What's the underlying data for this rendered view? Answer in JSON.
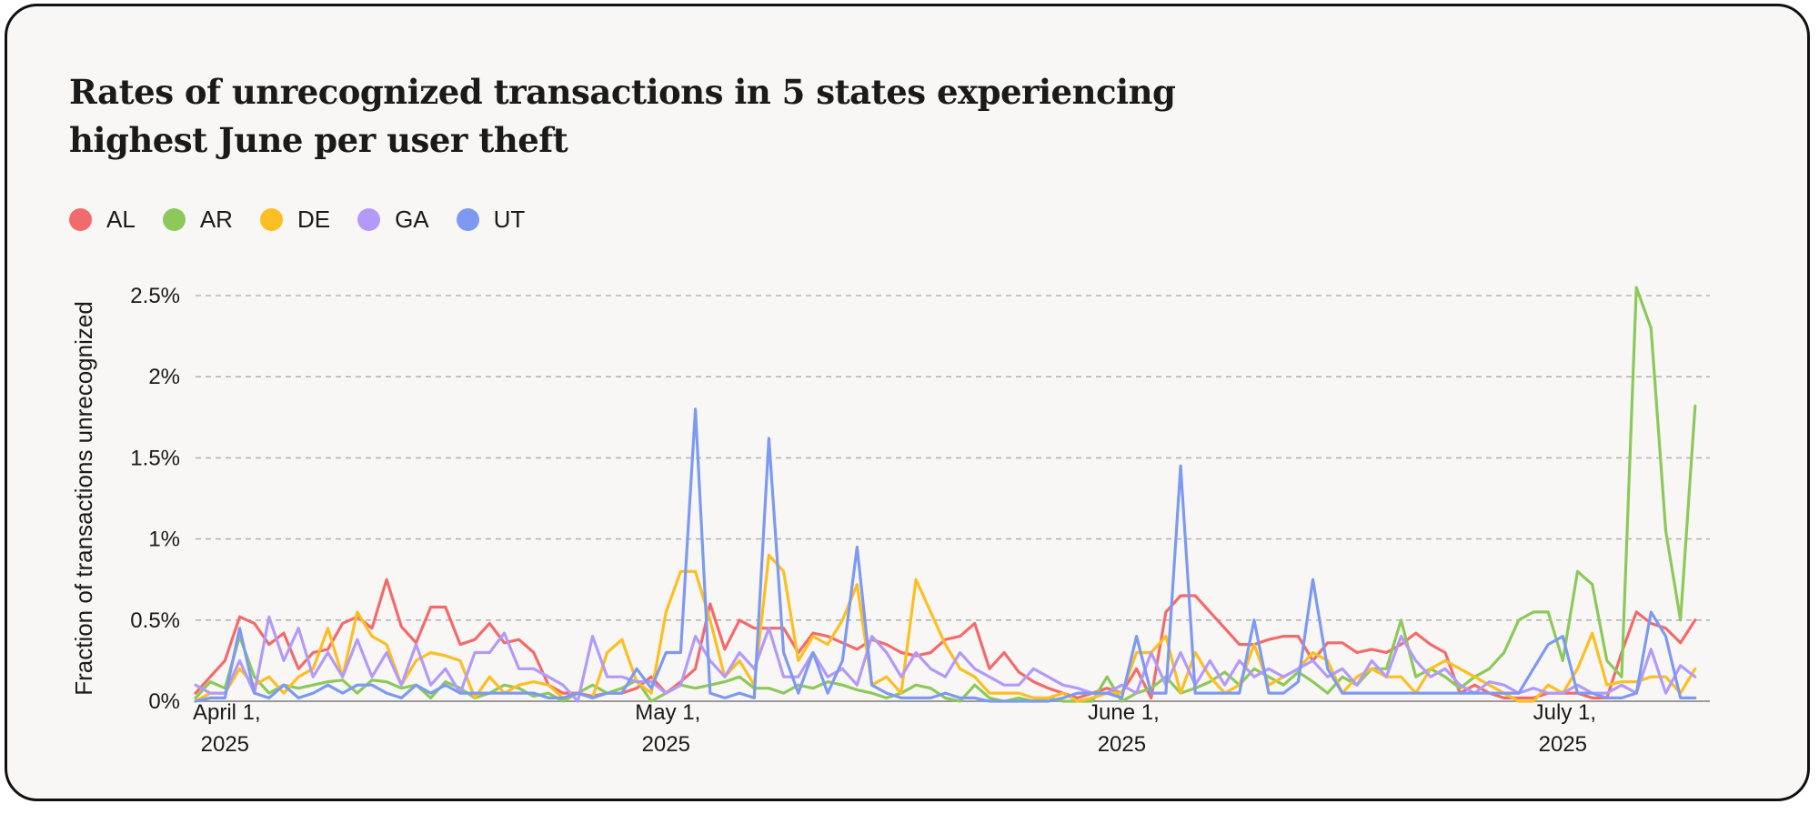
{
  "chart_data": {
    "type": "line",
    "title_lines": [
      "Rates of unrecognized transactions in 5 states experiencing",
      "highest June per user theft"
    ],
    "title": "Rates of unrecognized transactions in 5 states experiencing highest June per user theft",
    "xlabel": "",
    "ylabel": "Fraction of transactions unrecognized",
    "x_start": "2025-03-30",
    "x_end": "2025-07-11",
    "x_ticks": [
      {
        "date": "2025-04-01",
        "line1": "April 1,",
        "line2": "2025"
      },
      {
        "date": "2025-05-01",
        "line1": "May 1,",
        "line2": "2025"
      },
      {
        "date": "2025-06-01",
        "line1": "June 1,",
        "line2": "2025"
      },
      {
        "date": "2025-07-01",
        "line1": "July 1,",
        "line2": "2025"
      }
    ],
    "ylim": [
      0,
      2.5
    ],
    "y_ticks": [
      {
        "value": 0,
        "label": "0%"
      },
      {
        "value": 0.5,
        "label": "0.5%"
      },
      {
        "value": 1,
        "label": "1%"
      },
      {
        "value": 1.5,
        "label": "1.5%"
      },
      {
        "value": 2,
        "label": "2%"
      },
      {
        "value": 2.5,
        "label": "2.5%"
      }
    ],
    "grid": "horizontal dashed",
    "legend_position": "top-left",
    "series": [
      {
        "name": "AL",
        "color": "#f26b6b",
        "values": [
          0.05,
          0.15,
          0.25,
          0.52,
          0.48,
          0.35,
          0.42,
          0.2,
          0.3,
          0.32,
          0.48,
          0.52,
          0.45,
          0.75,
          0.46,
          0.36,
          0.58,
          0.58,
          0.35,
          0.38,
          0.48,
          0.36,
          0.38,
          0.3,
          0.1,
          0.05,
          0.05,
          0.03,
          0.05,
          0.05,
          0.08,
          0.15,
          0.05,
          0.12,
          0.2,
          0.6,
          0.32,
          0.5,
          0.45,
          0.45,
          0.45,
          0.3,
          0.42,
          0.4,
          0.36,
          0.32,
          0.38,
          0.35,
          0.3,
          0.28,
          0.3,
          0.38,
          0.4,
          0.48,
          0.2,
          0.3,
          0.18,
          0.12,
          0.08,
          0.05,
          0.02,
          0.05,
          0.08,
          0.05,
          0.2,
          0.02,
          0.55,
          0.65,
          0.65,
          0.55,
          0.45,
          0.35,
          0.35,
          0.38,
          0.4,
          0.4,
          0.25,
          0.36,
          0.36,
          0.3,
          0.32,
          0.3,
          0.35,
          0.42,
          0.35,
          0.3,
          0.05,
          0.1,
          0.05,
          0.02,
          0.02,
          0.02,
          0.05,
          0.05,
          0.05,
          0.02,
          0.02,
          0.3,
          0.55,
          0.48,
          0.45,
          0.36,
          0.5
        ]
      },
      {
        "name": "AR",
        "color": "#8cc95a",
        "values": [
          0.02,
          0.12,
          0.08,
          0.4,
          0.15,
          0.05,
          0.1,
          0.08,
          0.1,
          0.12,
          0.13,
          0.05,
          0.13,
          0.12,
          0.08,
          0.1,
          0.02,
          0.12,
          0.08,
          0.02,
          0.05,
          0.1,
          0.08,
          0.03,
          0.05,
          0.0,
          0.05,
          0.1,
          0.05,
          0.08,
          0.13,
          0.0,
          0.05,
          0.1,
          0.08,
          0.1,
          0.12,
          0.15,
          0.08,
          0.08,
          0.05,
          0.1,
          0.08,
          0.12,
          0.1,
          0.07,
          0.05,
          0.02,
          0.05,
          0.1,
          0.08,
          0.02,
          0.0,
          0.1,
          0.02,
          0.0,
          0.02,
          0.0,
          0.02,
          0.0,
          0.0,
          0.0,
          0.15,
          0.0,
          0.05,
          0.08,
          0.15,
          0.05,
          0.08,
          0.12,
          0.18,
          0.1,
          0.2,
          0.15,
          0.1,
          0.18,
          0.12,
          0.05,
          0.15,
          0.1,
          0.2,
          0.2,
          0.5,
          0.15,
          0.2,
          0.15,
          0.08,
          0.15,
          0.2,
          0.3,
          0.5,
          0.55,
          0.55,
          0.25,
          0.8,
          0.72,
          0.25,
          0.15,
          2.55,
          2.3,
          1.05,
          0.5,
          1.82
        ]
      },
      {
        "name": "DE",
        "color": "#fbbf24",
        "values": [
          0.0,
          0.05,
          0.05,
          0.2,
          0.1,
          0.15,
          0.05,
          0.15,
          0.2,
          0.45,
          0.15,
          0.55,
          0.4,
          0.35,
          0.1,
          0.25,
          0.3,
          0.28,
          0.25,
          0.02,
          0.15,
          0.05,
          0.1,
          0.12,
          0.1,
          0.02,
          0.05,
          0.02,
          0.3,
          0.38,
          0.12,
          0.05,
          0.55,
          0.8,
          0.8,
          0.5,
          0.15,
          0.25,
          0.1,
          0.9,
          0.8,
          0.25,
          0.4,
          0.35,
          0.5,
          0.72,
          0.1,
          0.15,
          0.05,
          0.75,
          0.55,
          0.35,
          0.2,
          0.15,
          0.05,
          0.05,
          0.05,
          0.02,
          0.02,
          0.05,
          0.0,
          0.02,
          0.05,
          0.05,
          0.3,
          0.3,
          0.4,
          0.05,
          0.3,
          0.15,
          0.05,
          0.1,
          0.35,
          0.1,
          0.15,
          0.2,
          0.3,
          0.25,
          0.05,
          0.15,
          0.2,
          0.15,
          0.15,
          0.05,
          0.2,
          0.25,
          0.2,
          0.15,
          0.1,
          0.05,
          0.0,
          0.0,
          0.1,
          0.05,
          0.2,
          0.42,
          0.1,
          0.12,
          0.12,
          0.15,
          0.15,
          0.05,
          0.2
        ]
      },
      {
        "name": "GA",
        "color": "#b49af7",
        "values": [
          0.1,
          0.05,
          0.05,
          0.25,
          0.05,
          0.52,
          0.25,
          0.45,
          0.15,
          0.3,
          0.15,
          0.38,
          0.15,
          0.3,
          0.1,
          0.35,
          0.1,
          0.2,
          0.05,
          0.3,
          0.3,
          0.42,
          0.2,
          0.2,
          0.15,
          0.1,
          0.0,
          0.4,
          0.15,
          0.15,
          0.12,
          0.12,
          0.05,
          0.1,
          0.4,
          0.25,
          0.15,
          0.3,
          0.2,
          0.45,
          0.15,
          0.15,
          0.3,
          0.15,
          0.2,
          0.1,
          0.4,
          0.3,
          0.15,
          0.3,
          0.2,
          0.15,
          0.3,
          0.2,
          0.15,
          0.1,
          0.1,
          0.2,
          0.15,
          0.1,
          0.08,
          0.05,
          0.05,
          0.1,
          0.05,
          0.3,
          0.1,
          0.3,
          0.1,
          0.25,
          0.1,
          0.25,
          0.15,
          0.2,
          0.15,
          0.2,
          0.25,
          0.15,
          0.2,
          0.1,
          0.25,
          0.15,
          0.4,
          0.25,
          0.15,
          0.2,
          0.1,
          0.05,
          0.12,
          0.1,
          0.05,
          0.08,
          0.05,
          0.05,
          0.1,
          0.05,
          0.05,
          0.1,
          0.05,
          0.32,
          0.05,
          0.22,
          0.15
        ]
      },
      {
        "name": "UT",
        "color": "#7d9af0",
        "values": [
          0.0,
          0.02,
          0.02,
          0.45,
          0.05,
          0.02,
          0.1,
          0.02,
          0.05,
          0.1,
          0.05,
          0.1,
          0.1,
          0.05,
          0.02,
          0.1,
          0.05,
          0.1,
          0.05,
          0.05,
          0.05,
          0.05,
          0.05,
          0.05,
          0.02,
          0.02,
          0.05,
          0.02,
          0.05,
          0.05,
          0.2,
          0.08,
          0.3,
          0.3,
          1.8,
          0.05,
          0.02,
          0.05,
          0.02,
          1.62,
          0.3,
          0.05,
          0.3,
          0.05,
          0.25,
          0.95,
          0.1,
          0.05,
          0.02,
          0.02,
          0.02,
          0.05,
          0.02,
          0.02,
          0.0,
          0.0,
          0.0,
          0.0,
          0.0,
          0.02,
          0.05,
          0.05,
          0.05,
          0.02,
          0.4,
          0.05,
          0.05,
          1.45,
          0.05,
          0.05,
          0.05,
          0.05,
          0.5,
          0.05,
          0.05,
          0.12,
          0.75,
          0.2,
          0.05,
          0.05,
          0.05,
          0.05,
          0.05,
          0.05,
          0.05,
          0.05,
          0.05,
          0.05,
          0.05,
          0.05,
          0.05,
          0.2,
          0.35,
          0.4,
          0.05,
          0.05,
          0.02,
          0.02,
          0.05,
          0.55,
          0.4,
          0.02,
          0.02
        ]
      }
    ]
  }
}
